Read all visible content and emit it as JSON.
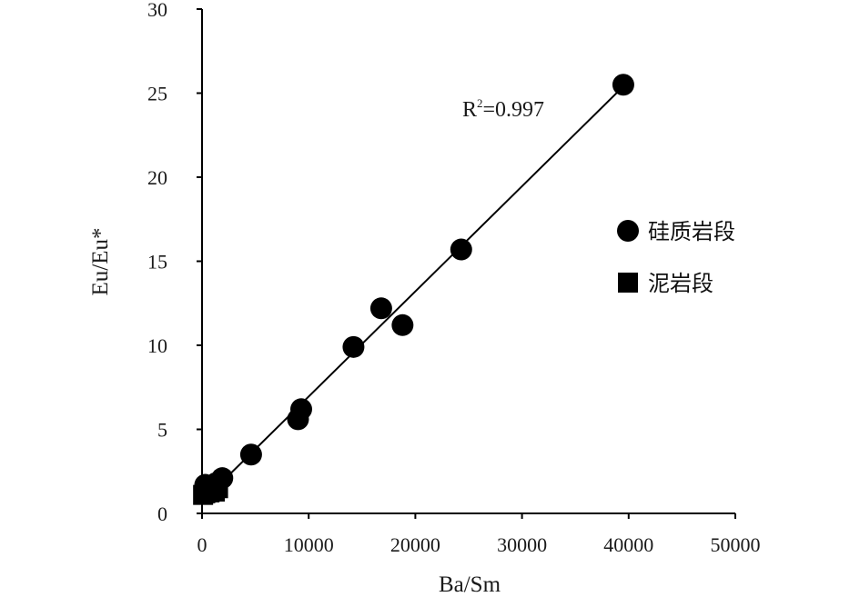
{
  "chart_data": {
    "type": "scatter",
    "xlabel": "Ba/Sm",
    "ylabel": "Eu/Eu*",
    "xlim": [
      0,
      50000
    ],
    "ylim": [
      0,
      30
    ],
    "x_ticks": [
      0,
      10000,
      20000,
      30000,
      40000,
      50000
    ],
    "y_ticks": [
      0,
      5,
      10,
      15,
      20,
      25,
      30
    ],
    "grid": false,
    "legend_position": "right",
    "colors": {
      "marker": "#000000",
      "axis": "#000000",
      "trendline": "#000000"
    },
    "series": [
      {
        "name": "硅质岩段",
        "marker": "circle",
        "points": [
          {
            "x": 39500,
            "y": 25.5
          },
          {
            "x": 24300,
            "y": 15.7
          },
          {
            "x": 16800,
            "y": 12.2
          },
          {
            "x": 18800,
            "y": 11.2
          },
          {
            "x": 14200,
            "y": 9.9
          },
          {
            "x": 9300,
            "y": 6.2
          },
          {
            "x": 9000,
            "y": 5.6
          },
          {
            "x": 4600,
            "y": 3.5
          },
          {
            "x": 1900,
            "y": 2.1
          },
          {
            "x": 1300,
            "y": 1.8
          },
          {
            "x": 800,
            "y": 1.6
          },
          {
            "x": 300,
            "y": 1.7
          }
        ]
      },
      {
        "name": "泥岩段",
        "marker": "square",
        "points": [
          {
            "x": 100,
            "y": 1.1
          },
          {
            "x": 300,
            "y": 1.2
          },
          {
            "x": 500,
            "y": 1.3
          },
          {
            "x": 700,
            "y": 1.25
          },
          {
            "x": 900,
            "y": 1.4
          },
          {
            "x": 1200,
            "y": 1.3
          },
          {
            "x": 1500,
            "y": 1.5
          }
        ]
      }
    ],
    "trendline": {
      "type": "linear",
      "x": [
        0,
        39500
      ],
      "y": [
        0.7,
        25.4
      ],
      "label_prefix": "R",
      "label_sup": "2",
      "label_value": "=0.997"
    }
  }
}
